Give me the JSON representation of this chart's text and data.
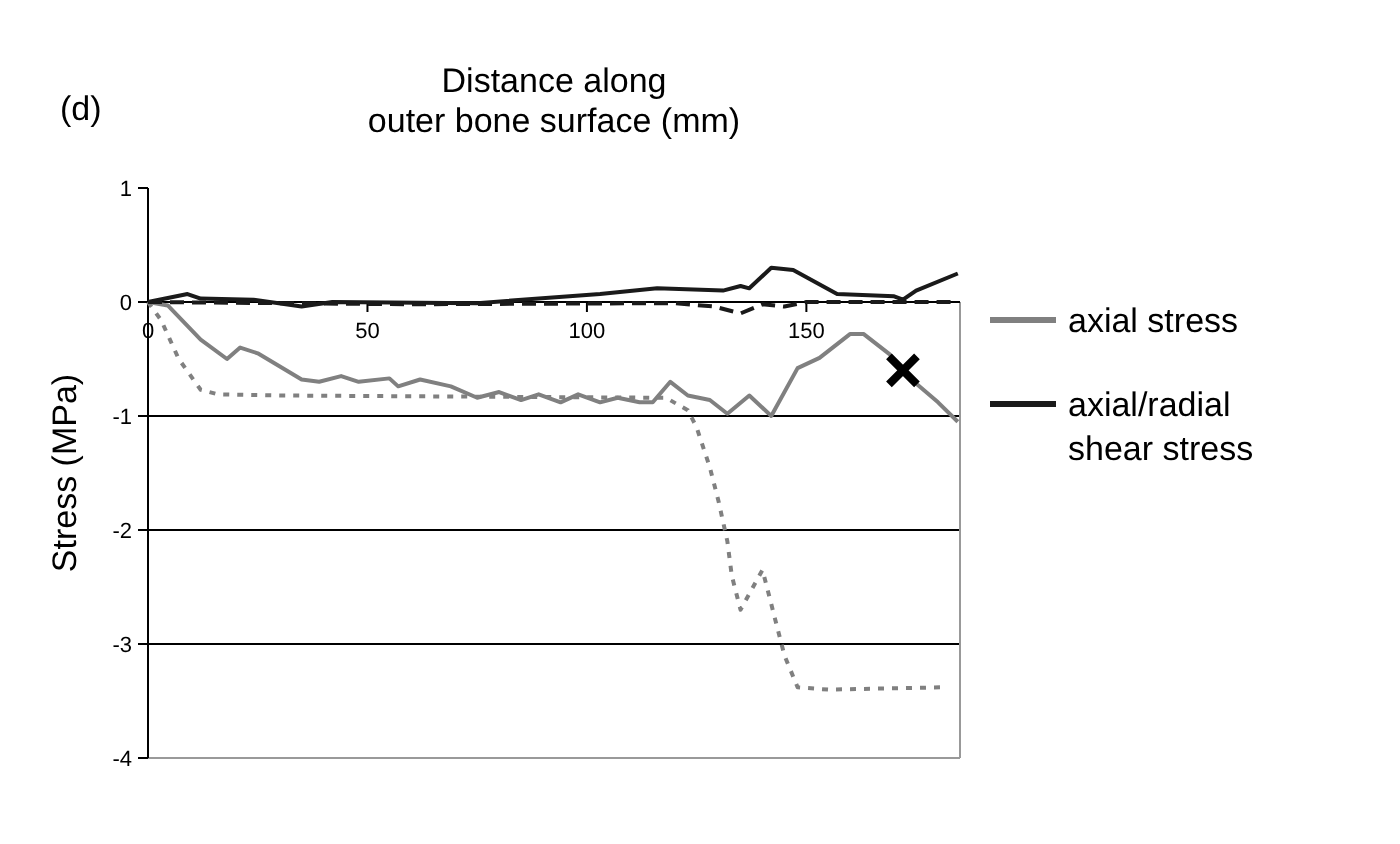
{
  "chart_data": {
    "type": "line",
    "xlabel": "Distance along\nouter bone surface (mm)",
    "ylabel": "Stress (MPa)",
    "annotations": [
      "(d)"
    ],
    "xlim": [
      0,
      185
    ],
    "xticks": [
      0,
      50,
      100,
      150
    ],
    "ylim": [
      -4,
      1
    ],
    "yticks": [
      -4,
      -3,
      -2,
      -1,
      0,
      1
    ],
    "grid": "y",
    "legend": "right",
    "series": [
      {
        "name": "axial stress",
        "color": "#808080",
        "line_style": "solid",
        "x": [
          0,
          4.5,
          12,
          18,
          21,
          25,
          35,
          39,
          44,
          48,
          55,
          57,
          62,
          69,
          75,
          80,
          85,
          89,
          94,
          98,
          103,
          107,
          112,
          115,
          119,
          123,
          128,
          132,
          137,
          142,
          148,
          153,
          160,
          163,
          169,
          173,
          180,
          184.5
        ],
        "values": [
          0,
          -0.03,
          -0.33,
          -0.5,
          -0.4,
          -0.45,
          -0.68,
          -0.7,
          -0.65,
          -0.7,
          -0.67,
          -0.74,
          -0.68,
          -0.74,
          -0.84,
          -0.79,
          -0.86,
          -0.81,
          -0.88,
          -0.81,
          -0.88,
          -0.84,
          -0.88,
          -0.88,
          -0.7,
          -0.82,
          -0.86,
          -0.98,
          -0.82,
          -1.0,
          -0.58,
          -0.49,
          -0.28,
          -0.28,
          -0.46,
          -0.65,
          -0.88,
          -1.05
        ]
      },
      {
        "name": "axial/radial shear stress",
        "color": "#1a1a1a",
        "line_style": "solid",
        "x": [
          0,
          9,
          12,
          24,
          35,
          42,
          75,
          103,
          116,
          131,
          135,
          137,
          142,
          147,
          157,
          170,
          172,
          175,
          184.5
        ],
        "values": [
          0,
          0.07,
          0.03,
          0.02,
          -0.04,
          0,
          -0.01,
          0.07,
          0.12,
          0.1,
          0.14,
          0.12,
          0.3,
          0.28,
          0.07,
          0.05,
          0.02,
          0.1,
          0.25
        ]
      },
      {
        "color": "#808080",
        "line_style": "dotted",
        "x": [
          0,
          3,
          5,
          7,
          12,
          16,
          30,
          118,
          123,
          125,
          128,
          130,
          132,
          133,
          135,
          140,
          142,
          145,
          148,
          155,
          181
        ],
        "values": [
          0,
          -0.16,
          -0.33,
          -0.5,
          -0.77,
          -0.81,
          -0.82,
          -0.84,
          -0.95,
          -1.1,
          -1.45,
          -1.75,
          -2.1,
          -2.4,
          -2.7,
          -2.35,
          -2.65,
          -3.1,
          -3.38,
          -3.4,
          -3.38
        ]
      },
      {
        "color": "#1a1a1a",
        "line_style": "dashed",
        "x": [
          0,
          60,
          120,
          129,
          135,
          140,
          145,
          150,
          184.5
        ],
        "values": [
          0,
          -0.02,
          -0.01,
          -0.04,
          -0.1,
          -0.02,
          -0.04,
          0,
          0
        ]
      },
      {
        "type": "scatter",
        "marker": "cross",
        "color": "#000000",
        "x": [
          172
        ],
        "values": [
          -0.6
        ]
      }
    ]
  }
}
